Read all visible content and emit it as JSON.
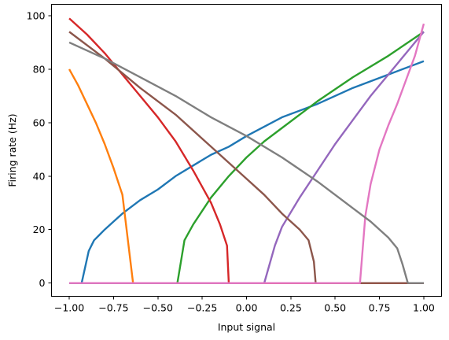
{
  "chart_data": {
    "type": "line",
    "title": "",
    "xlabel": "Input signal",
    "ylabel": "Firing rate (Hz)",
    "xlim": [
      -1.1,
      1.1
    ],
    "ylim": [
      -4.965,
      104.265
    ],
    "xticks": [
      -1.0,
      -0.75,
      -0.5,
      -0.25,
      0.0,
      0.25,
      0.5,
      0.75,
      1.0
    ],
    "xtick_labels": [
      "−1.00",
      "−0.75",
      "−0.50",
      "−0.25",
      "0.00",
      "0.25",
      "0.50",
      "0.75",
      "1.00"
    ],
    "yticks": [
      0,
      20,
      40,
      60,
      80,
      100
    ],
    "ytick_labels": [
      "0",
      "20",
      "40",
      "60",
      "80",
      "100"
    ],
    "grid": false,
    "legend": "none",
    "series": [
      {
        "color": "#1f77b4",
        "x": [
          -1.0,
          -0.93,
          -0.89,
          -0.86,
          -0.8,
          -0.75,
          -0.7,
          -0.6,
          -0.5,
          -0.4,
          -0.3,
          -0.2,
          -0.1,
          0.0,
          0.2,
          0.4,
          0.6,
          0.8,
          1.0
        ],
        "y": [
          0,
          0,
          12,
          16,
          20,
          23,
          26,
          31,
          35,
          40,
          44,
          48,
          51,
          55,
          62,
          67,
          73,
          78,
          83
        ]
      },
      {
        "color": "#ff7f0e",
        "x": [
          -1.0,
          -0.95,
          -0.9,
          -0.85,
          -0.8,
          -0.75,
          -0.7,
          -0.68,
          -0.64,
          -0.63,
          1.0
        ],
        "y": [
          80,
          74,
          67,
          60,
          52,
          43,
          33,
          22,
          0,
          0,
          0
        ]
      },
      {
        "color": "#2ca02c",
        "x": [
          -1.0,
          -0.39,
          -0.35,
          -0.3,
          -0.25,
          -0.2,
          -0.1,
          0.0,
          0.1,
          0.2,
          0.4,
          0.6,
          0.8,
          1.0
        ],
        "y": [
          0,
          0,
          16,
          22,
          27,
          32,
          40,
          47,
          53,
          58,
          68,
          77,
          85,
          94
        ]
      },
      {
        "color": "#d62728",
        "x": [
          -1.0,
          -0.9,
          -0.8,
          -0.7,
          -0.6,
          -0.5,
          -0.4,
          -0.3,
          -0.2,
          -0.15,
          -0.11,
          -0.1,
          1.0
        ],
        "y": [
          99,
          93,
          86,
          78,
          70,
          62,
          53,
          42,
          30,
          22,
          14,
          0,
          0
        ]
      },
      {
        "color": "#9467bd",
        "x": [
          -1.0,
          0.1,
          0.16,
          0.2,
          0.3,
          0.4,
          0.5,
          0.6,
          0.7,
          0.8,
          0.9,
          1.0
        ],
        "y": [
          0,
          0,
          14,
          21,
          32,
          42,
          52,
          61,
          70,
          78,
          86,
          94
        ]
      },
      {
        "color": "#8c564b",
        "x": [
          -1.0,
          -0.8,
          -0.6,
          -0.4,
          -0.2,
          0.0,
          0.1,
          0.2,
          0.3,
          0.35,
          0.38,
          0.39,
          1.0
        ],
        "y": [
          94,
          84,
          73,
          63,
          51,
          39,
          33,
          26,
          20,
          16,
          8,
          0,
          0
        ]
      },
      {
        "color": "#e377c2",
        "x": [
          -1.0,
          0.64,
          0.67,
          0.7,
          0.75,
          0.8,
          0.85,
          0.9,
          0.95,
          1.0
        ],
        "y": [
          0,
          0,
          25,
          37,
          50,
          59,
          67,
          76,
          85,
          97
        ]
      },
      {
        "color": "#7f7f7f",
        "x": [
          -1.0,
          -0.8,
          -0.6,
          -0.4,
          -0.2,
          0.0,
          0.2,
          0.4,
          0.6,
          0.7,
          0.8,
          0.85,
          0.88,
          0.91,
          0.92,
          1.0
        ],
        "y": [
          90,
          84,
          77,
          70,
          62,
          55,
          47,
          38,
          28,
          23,
          17,
          13,
          7,
          0,
          0,
          0
        ]
      }
    ]
  }
}
